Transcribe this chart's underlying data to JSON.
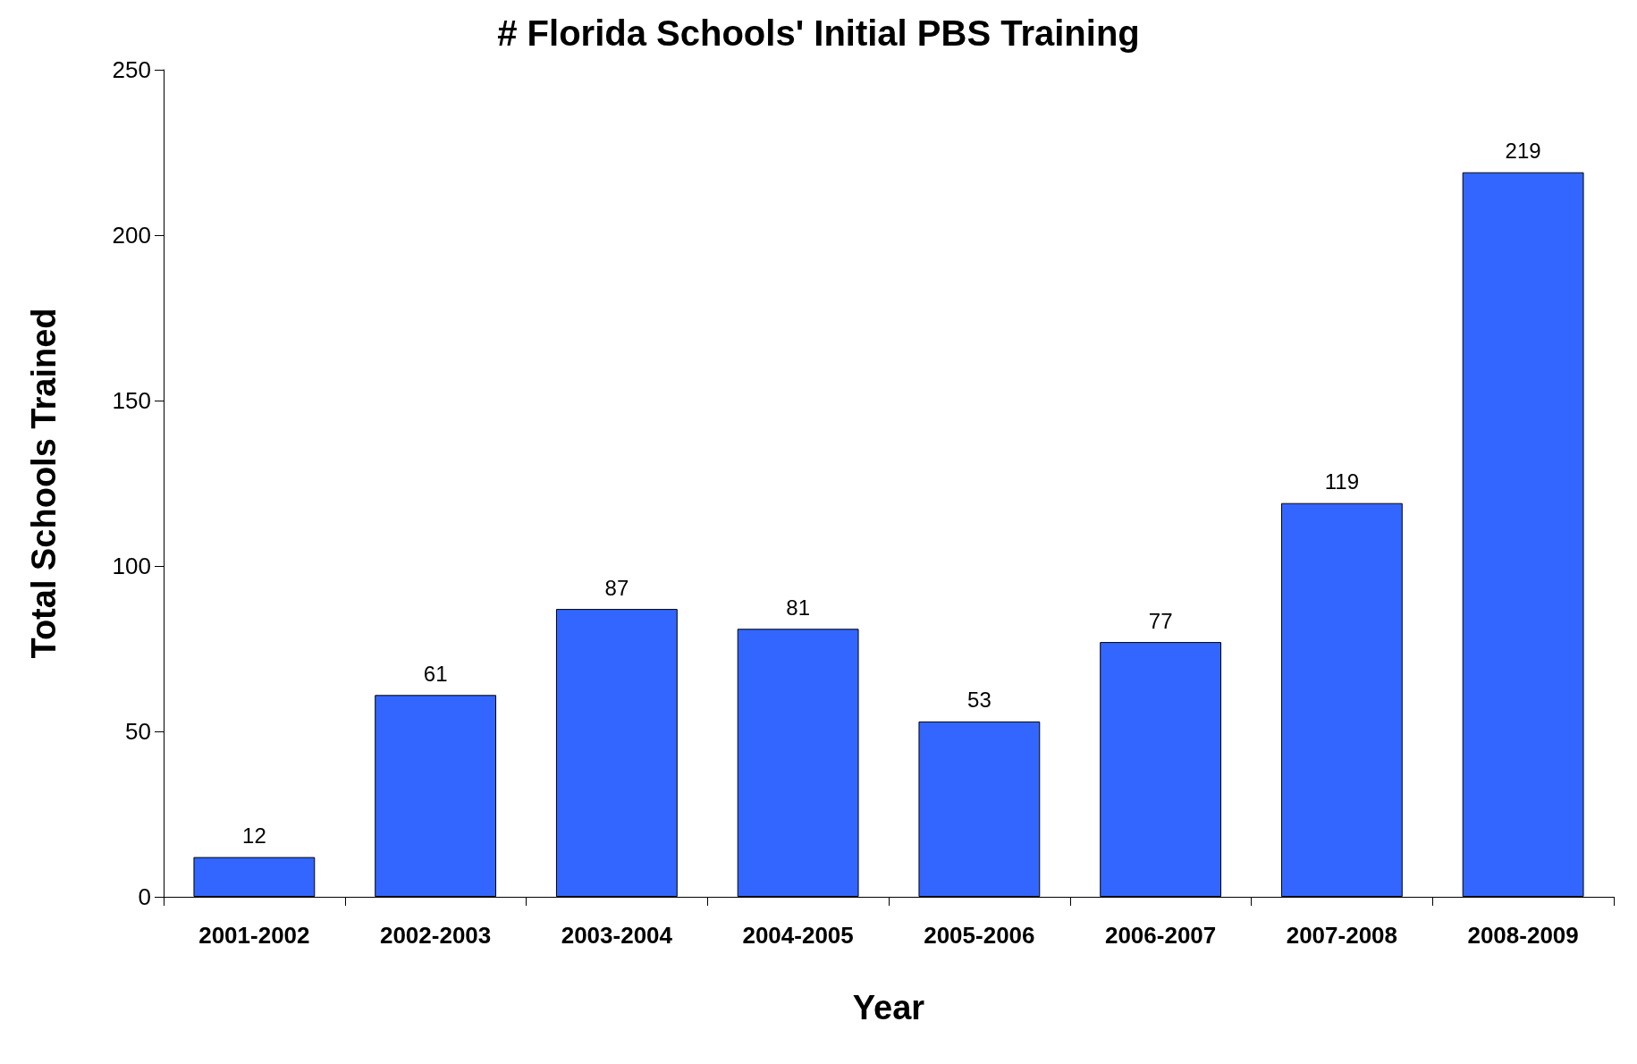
{
  "chart_data": {
    "type": "bar",
    "title": "# Florida Schools' Initial PBS Training",
    "xlabel": "Year",
    "ylabel": "Total Schools Trained",
    "categories": [
      "2001-2002",
      "2002-2003",
      "2003-2004",
      "2004-2005",
      "2005-2006",
      "2006-2007",
      "2007-2008",
      "2008-2009"
    ],
    "values": [
      12,
      61,
      87,
      81,
      53,
      77,
      119,
      219
    ],
    "color": "#3366ff",
    "ylim": [
      0,
      250
    ],
    "yticks": [
      0,
      50,
      100,
      150,
      200,
      250
    ],
    "grid": false,
    "data_labels": true
  }
}
